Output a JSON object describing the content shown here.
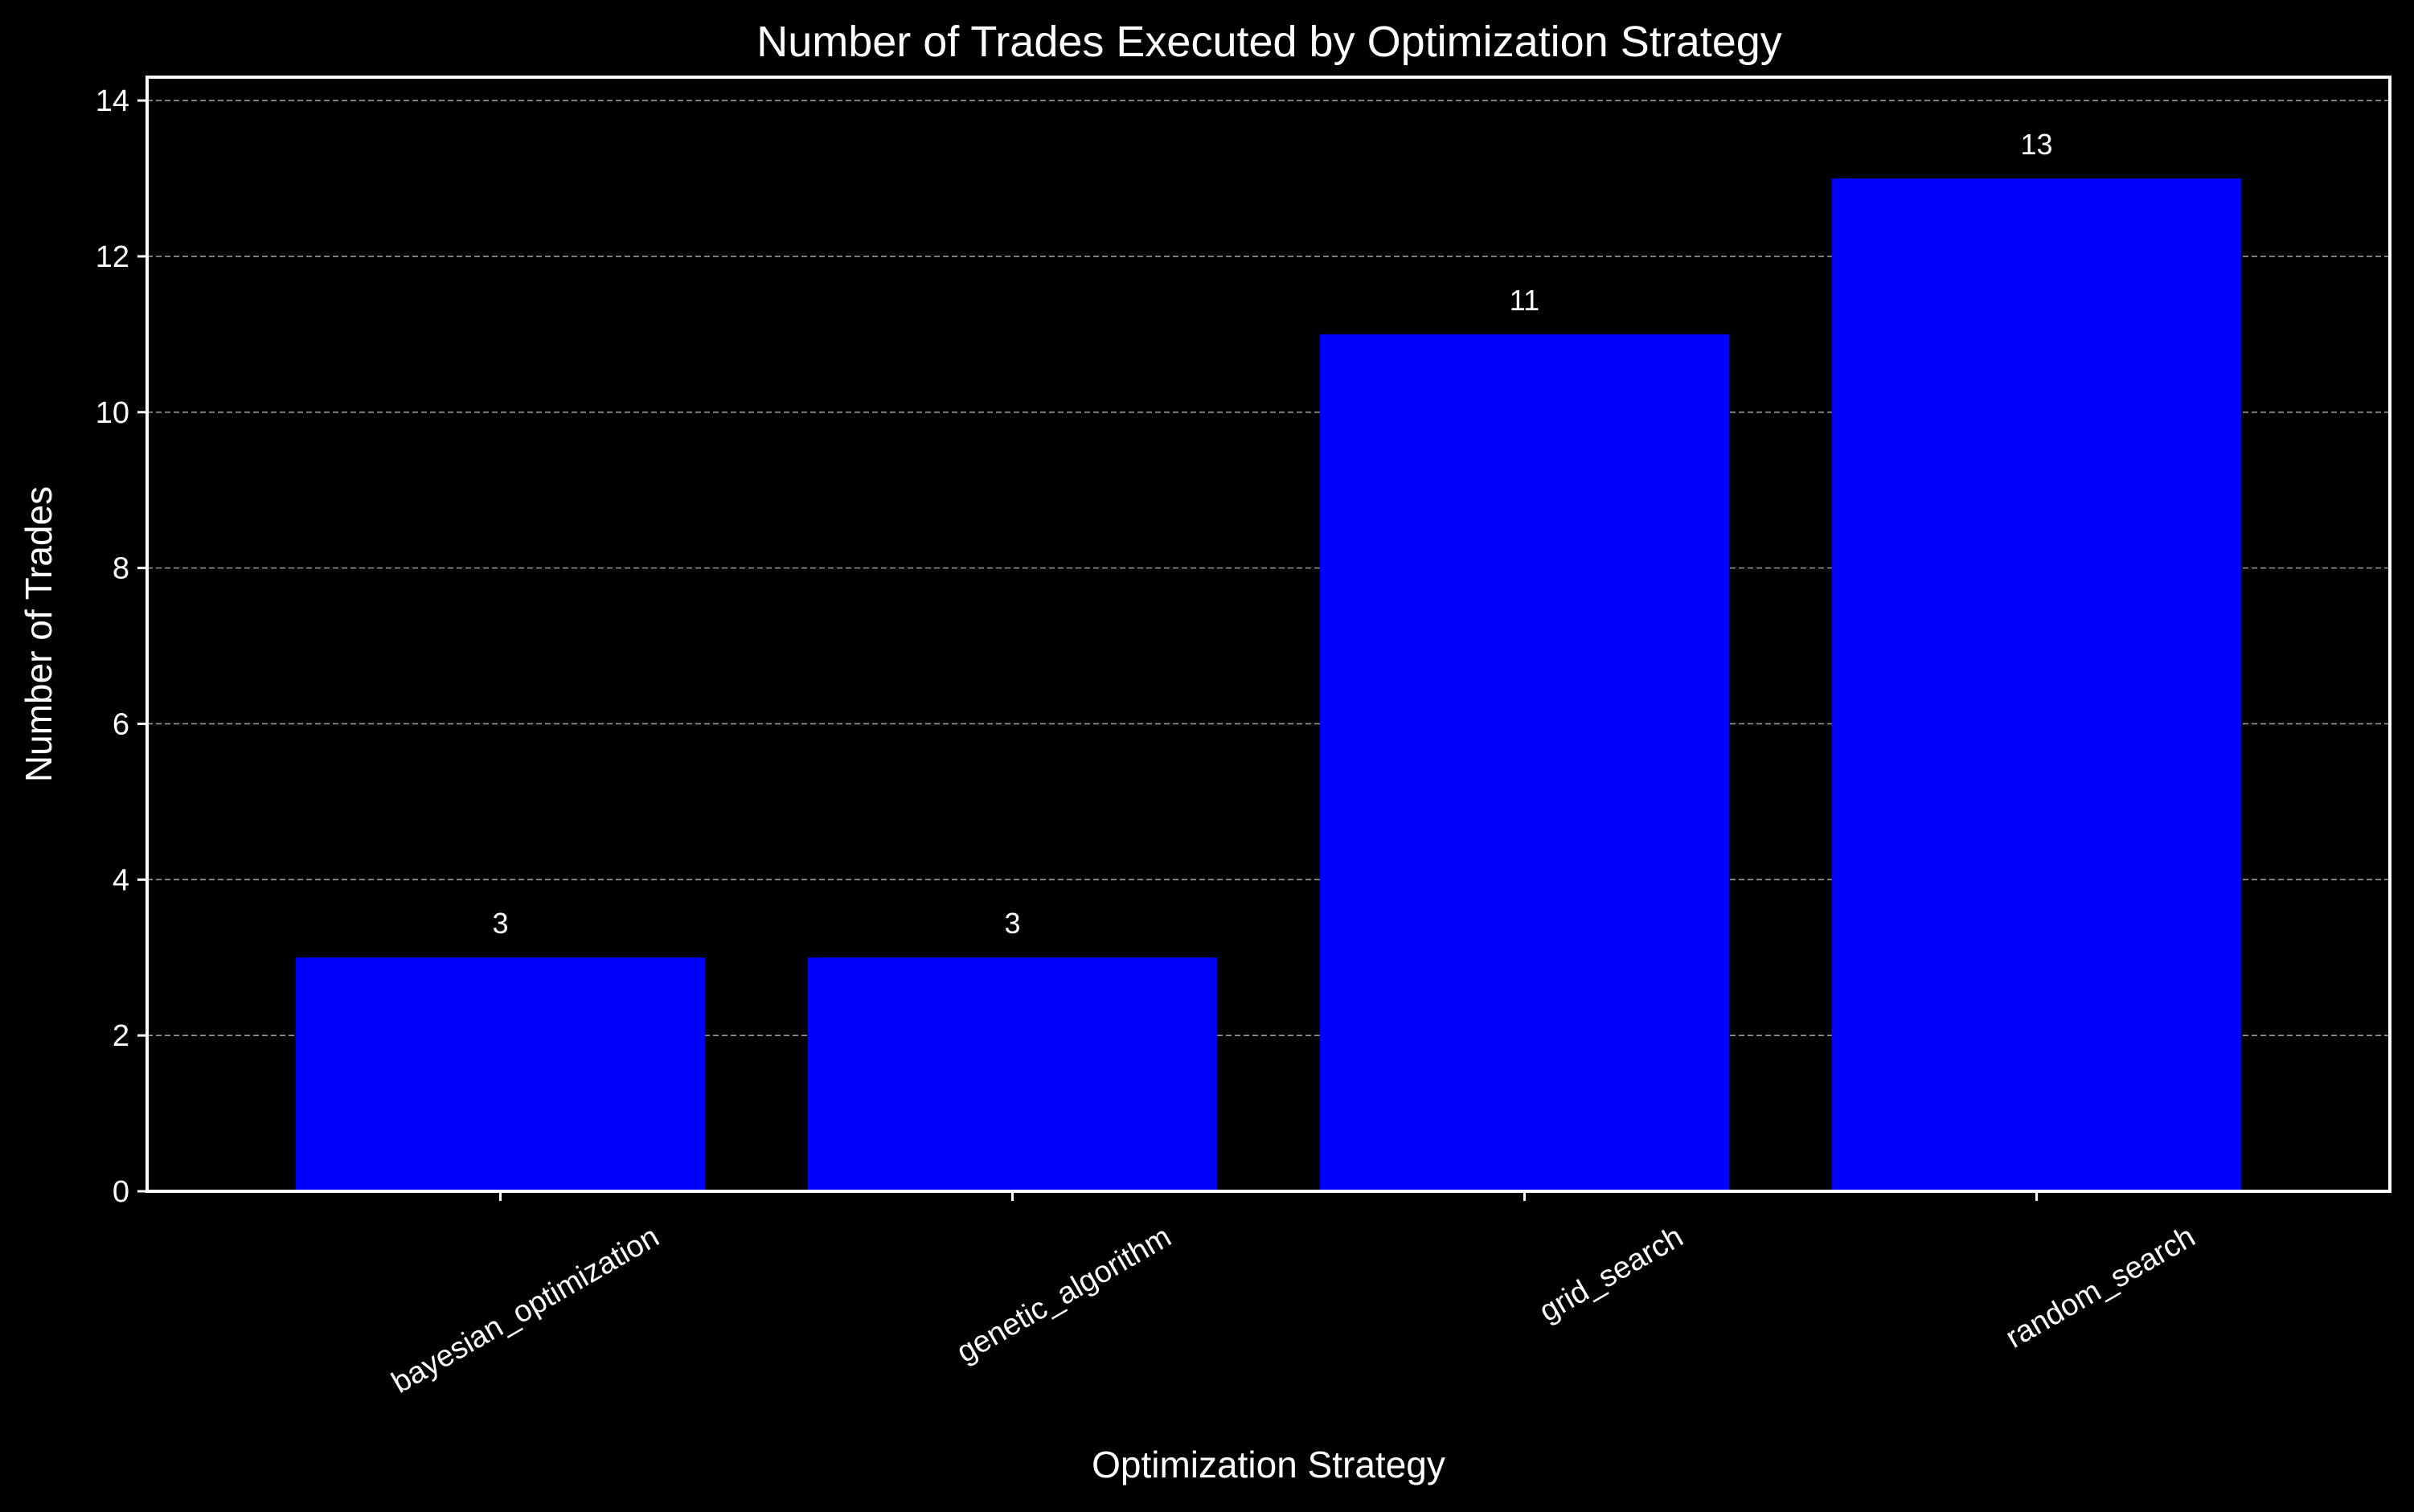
{
  "chart_data": {
    "type": "bar",
    "title": "Number of Trades Executed by Optimization Strategy",
    "xlabel": "Optimization Strategy",
    "ylabel": "Number of Trades",
    "categories": [
      "bayesian_optimization",
      "genetic_algorithm",
      "grid_search",
      "random_search"
    ],
    "values": [
      3,
      3,
      11,
      13
    ],
    "ylim": [
      0,
      14.3
    ],
    "yticks": [
      0,
      2,
      4,
      6,
      8,
      10,
      12,
      14
    ],
    "grid": "y-axis dashed",
    "legend": "none",
    "data_labels": true,
    "colors": {
      "background": "#000000",
      "bar": "#0000ff",
      "text": "#ffffff",
      "grid": "#9a9a9a",
      "axes": "#ffffff"
    }
  }
}
